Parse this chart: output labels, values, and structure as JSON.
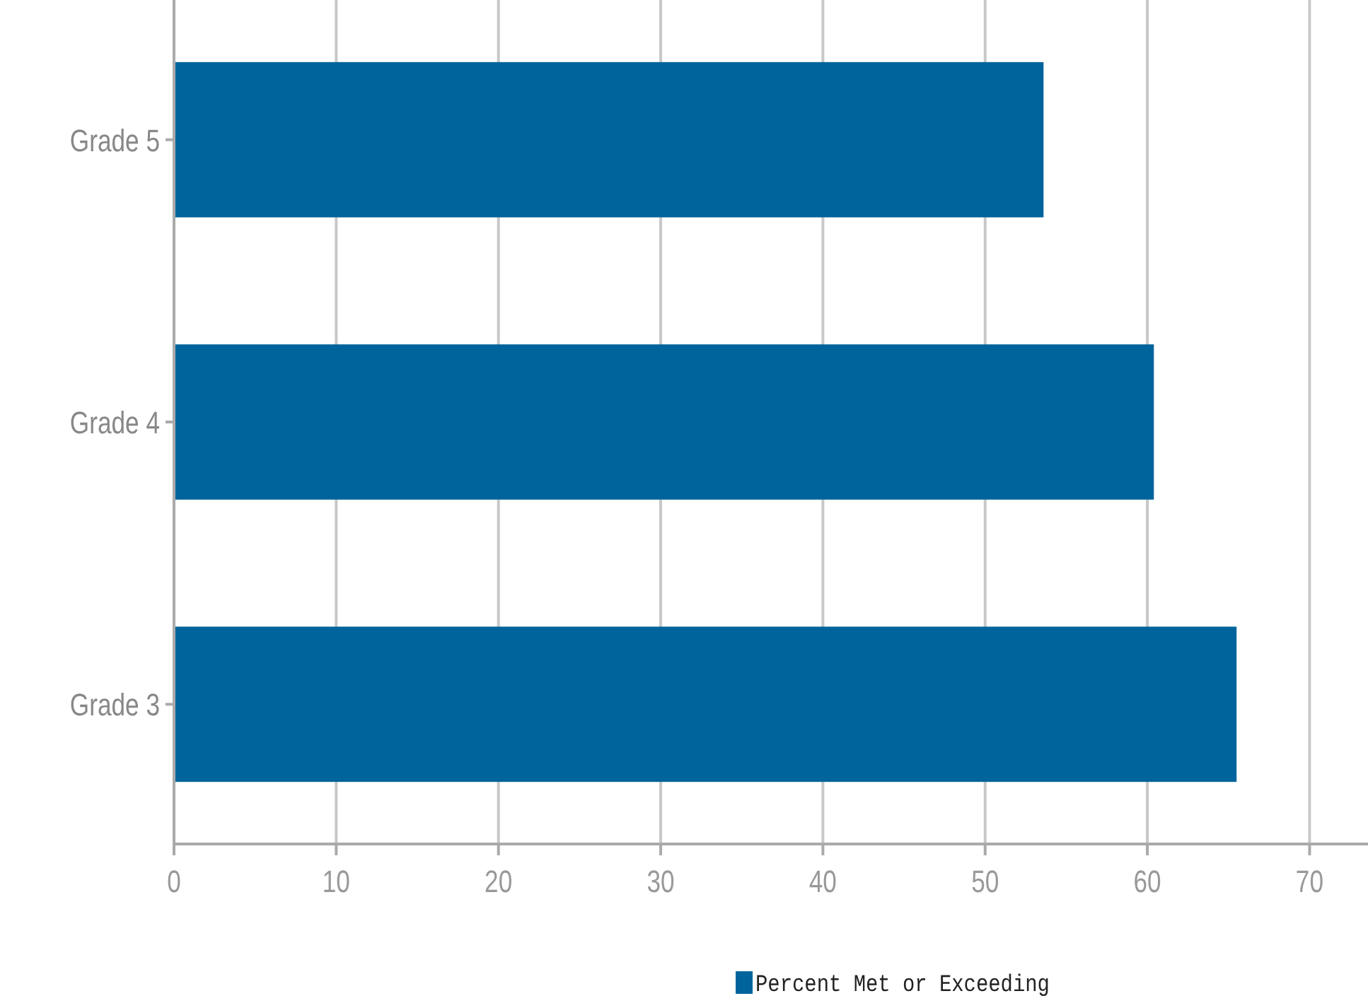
{
  "chart_data": {
    "type": "bar",
    "orientation": "horizontal",
    "categories": [
      "Grade 5",
      "Grade 4",
      "Grade 3"
    ],
    "series": [
      {
        "name": "Percent Met or Exceeding",
        "color": "#00649c",
        "values": [
          53.6,
          60.4,
          65.5
        ]
      }
    ],
    "xlim": [
      0,
      73.6
    ],
    "xticks": [
      0,
      10,
      20,
      30,
      40,
      50,
      60,
      70
    ],
    "grid": "x",
    "legend": "bottom"
  }
}
